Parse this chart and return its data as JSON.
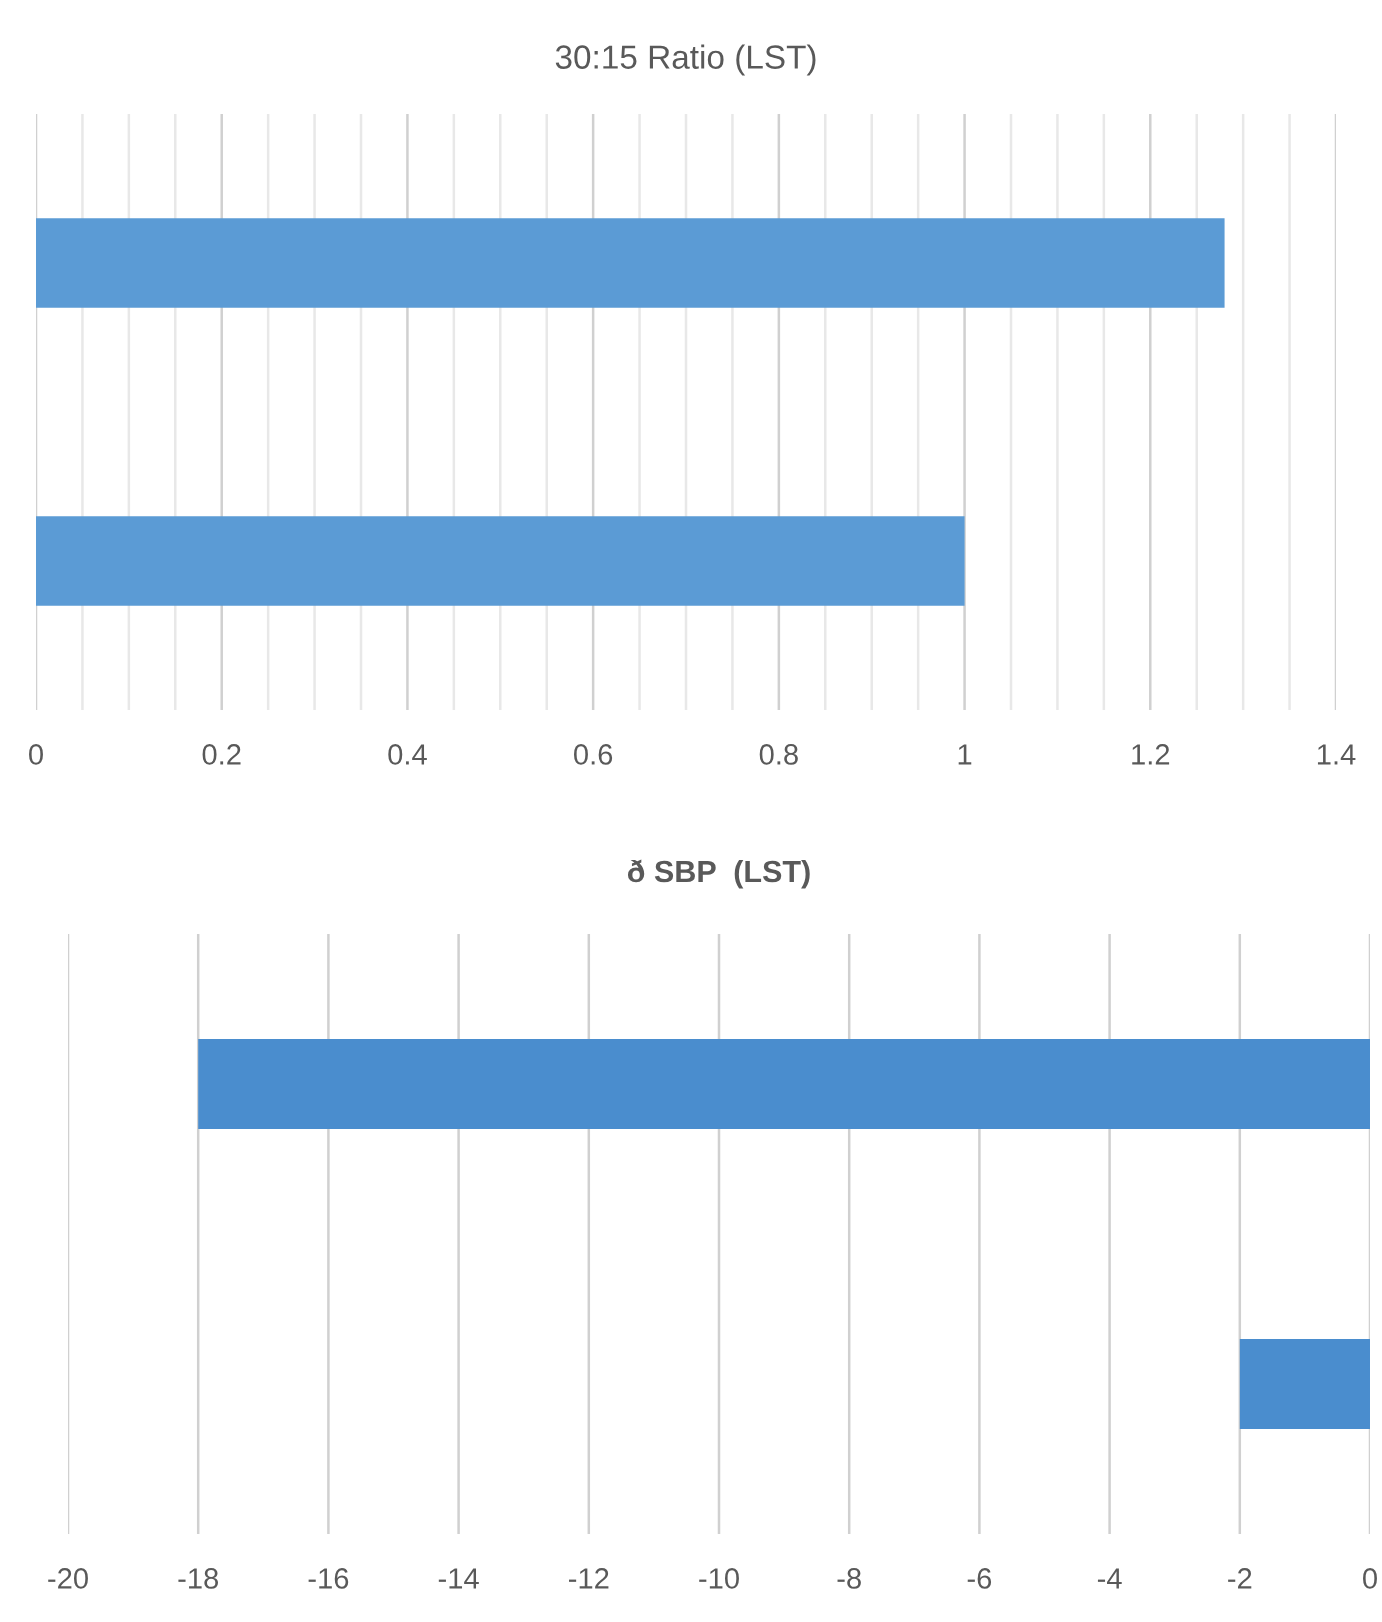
{
  "chart_data": [
    {
      "type": "bar",
      "orientation": "horizontal",
      "title": "30:15 Ratio (LST)",
      "categories": [
        null,
        null
      ],
      "values": [
        1.28,
        1.0
      ],
      "color": "#5b9bd5",
      "xlim": [
        0,
        1.4
      ],
      "xticks": [
        0,
        {
          "value": 0.05,
          "label": null
        },
        {
          "value": 0.1,
          "label": null
        },
        {
          "value": 0.15,
          "label": null
        },
        {
          "value": 0.2,
          "label": "0.2"
        },
        {
          "value": 0.25,
          "label": null
        },
        {
          "value": 0.3,
          "label": null
        },
        {
          "value": 0.35,
          "label": null
        },
        {
          "value": 0.4,
          "label": "0.4"
        },
        {
          "value": 0.45,
          "label": null
        },
        {
          "value": 0.5,
          "label": null
        },
        {
          "value": 0.55,
          "label": null
        },
        {
          "value": 0.6,
          "label": "0.6"
        },
        {
          "value": 0.65,
          "label": null
        },
        {
          "value": 0.7,
          "label": null
        },
        {
          "value": 0.75,
          "label": null
        },
        {
          "value": 0.8,
          "label": "0.8"
        },
        {
          "value": 0.85,
          "label": null
        },
        {
          "value": 0.9,
          "label": null
        },
        {
          "value": 0.95,
          "label": null
        },
        1,
        {
          "value": 1.05,
          "label": null
        },
        {
          "value": 1.1,
          "label": null
        },
        {
          "value": 1.15,
          "label": null
        },
        {
          "value": 1.2,
          "label": "1.2"
        },
        {
          "value": 1.25,
          "label": null
        },
        {
          "value": 1.3,
          "label": null
        },
        {
          "value": 1.35,
          "label": null
        },
        {
          "value": 1.4,
          "label": "1.4"
        }
      ],
      "grid": "x"
    },
    {
      "type": "bar",
      "orientation": "horizontal",
      "title": "ð SBP  (LST)",
      "categories": [
        null,
        null
      ],
      "values": [
        -18,
        -2
      ],
      "color": "#4a8dce",
      "xlim": [
        -20,
        0
      ],
      "xticks": [
        -20,
        -18,
        -16,
        -14,
        -12,
        -10,
        -8,
        -6,
        -4,
        -2,
        0
      ],
      "grid": "x"
    }
  ]
}
